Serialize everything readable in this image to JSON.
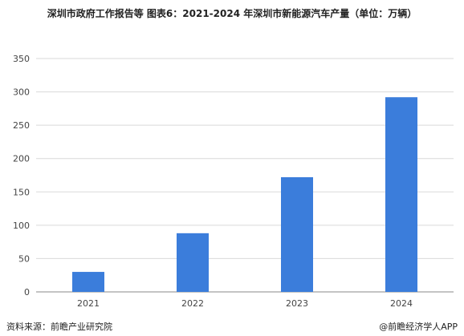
{
  "title": "深圳市政府工作报告等  图表6：2021-2024 年深圳市新能源汽车产量（单位：万辆）",
  "source": "资料来源：前瞻产业研究院",
  "brand": "@前瞻经济学人APP",
  "colors": {
    "bar": "#3b7ddb",
    "grid": "#d9d9d9",
    "axis": "#888888"
  },
  "chart_data": {
    "type": "bar",
    "categories": [
      "2021",
      "2022",
      "2023",
      "2024"
    ],
    "values": [
      30,
      88,
      172,
      292
    ],
    "ylim": [
      0,
      350
    ],
    "yticks": [
      0,
      50,
      100,
      150,
      200,
      250,
      300,
      350
    ],
    "grid": true,
    "title": "深圳市政府工作报告等  图表6：2021-2024 年深圳市新能源汽车产量（单位：万辆）",
    "xlabel": "",
    "ylabel": ""
  }
}
